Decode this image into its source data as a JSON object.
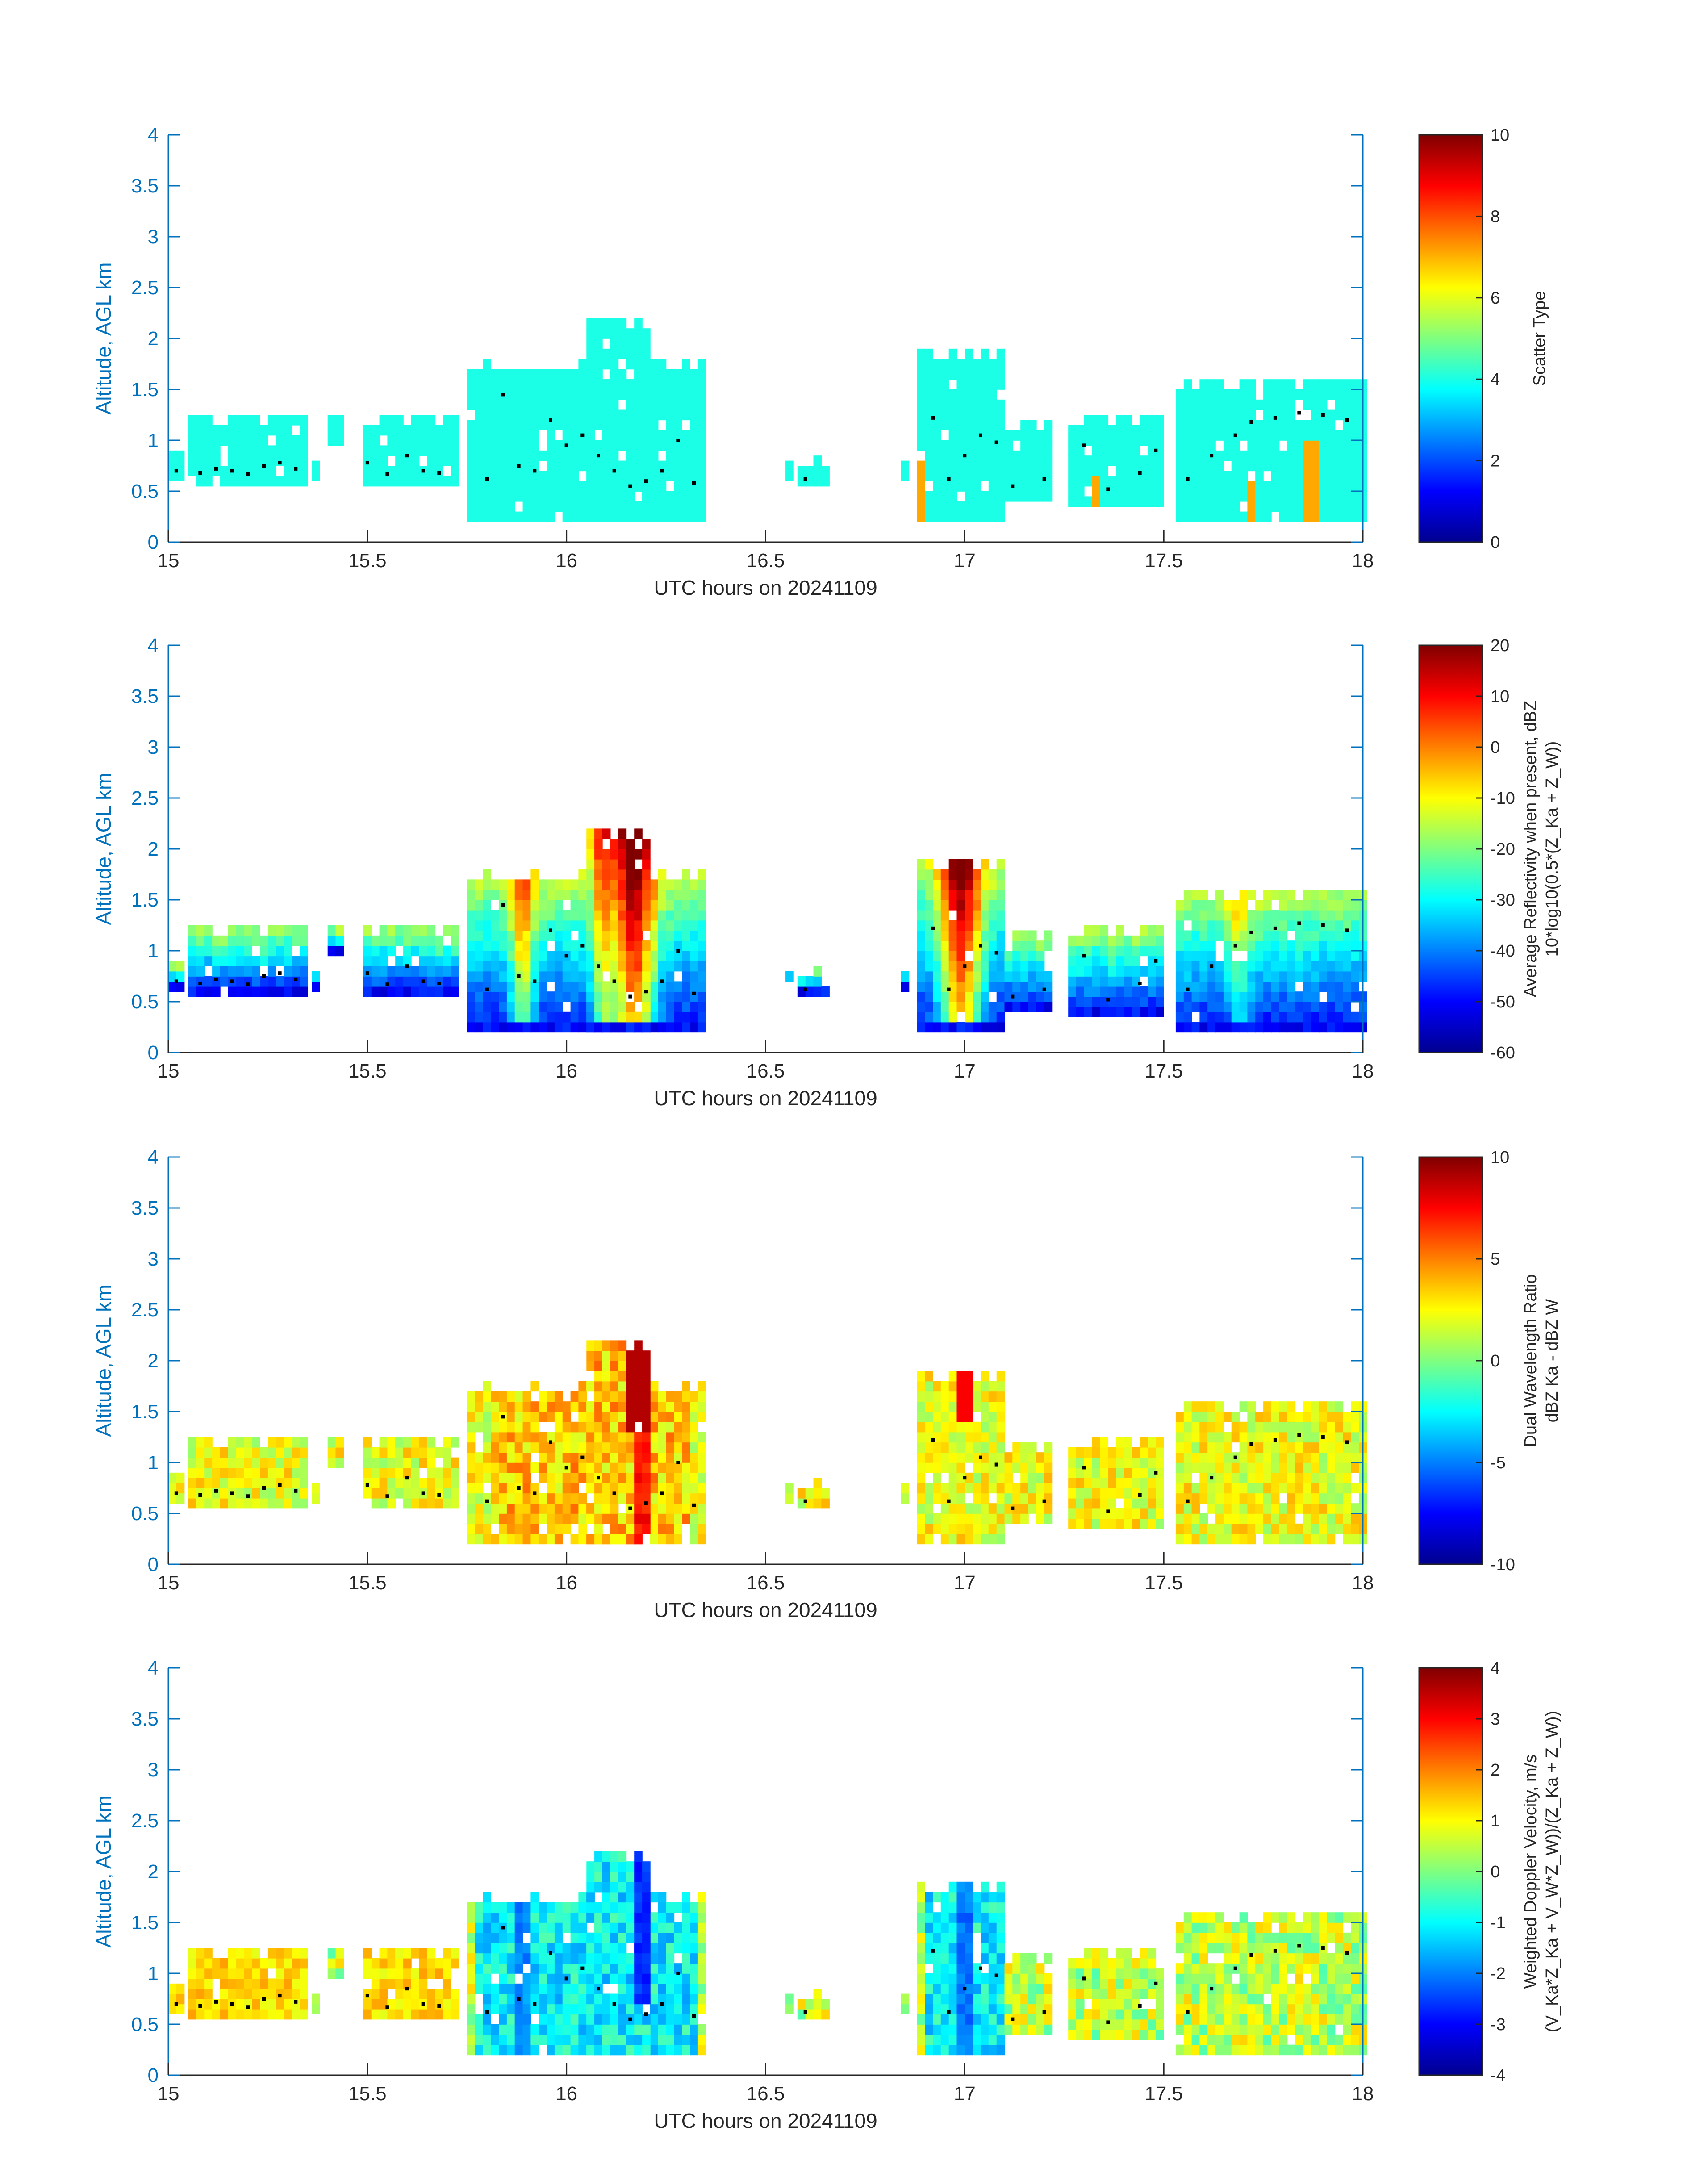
{
  "figure": {
    "xlabel": "UTC hours on 20241109",
    "ylabel": "Altitude, AGL km",
    "axis_color": "#0072BD",
    "colormap": "jet"
  },
  "chart_data": [
    {
      "type": "heatmap",
      "xlim": [
        15,
        18
      ],
      "ylim": [
        0,
        4
      ],
      "xticks": [
        "15",
        "15.5",
        "16",
        "16.5",
        "17",
        "17.5",
        "18"
      ],
      "yticks": [
        "0",
        "0.5",
        "1",
        "1.5",
        "2",
        "2.5",
        "3",
        "3.5",
        "4"
      ],
      "colorbar": {
        "label_lines": [
          "Scatter Type"
        ],
        "clim": [
          0,
          10
        ],
        "ticks": [
          "0",
          "2",
          "4",
          "6",
          "8",
          "10"
        ]
      },
      "field": "scatter"
    },
    {
      "type": "heatmap",
      "xlim": [
        15,
        18
      ],
      "ylim": [
        0,
        4
      ],
      "xticks": [
        "15",
        "15.5",
        "16",
        "16.5",
        "17",
        "17.5",
        "18"
      ],
      "yticks": [
        "0",
        "0.5",
        "1",
        "1.5",
        "2",
        "2.5",
        "3",
        "3.5",
        "4"
      ],
      "colorbar": {
        "label_lines": [
          "Average Reflectivity when present, dBZ",
          "10*log10(0.5*(Z_Ka + Z_W))"
        ],
        "clim": [
          -60,
          20
        ],
        "ticks": [
          "-60",
          "-50",
          "-40",
          "-30",
          "-20",
          "-10",
          "0",
          "10",
          "20"
        ]
      },
      "field": "reflectivity"
    },
    {
      "type": "heatmap",
      "xlim": [
        15,
        18
      ],
      "ylim": [
        0,
        4
      ],
      "xticks": [
        "15",
        "15.5",
        "16",
        "16.5",
        "17",
        "17.5",
        "18"
      ],
      "yticks": [
        "0",
        "0.5",
        "1",
        "1.5",
        "2",
        "2.5",
        "3",
        "3.5",
        "4"
      ],
      "colorbar": {
        "label_lines": [
          "Dual Wavelength Ratio",
          "dBZ Ka - dBZ W"
        ],
        "clim": [
          -10,
          10
        ],
        "ticks": [
          "-10",
          "-5",
          "0",
          "5",
          "10"
        ]
      },
      "field": "dwr"
    },
    {
      "type": "heatmap",
      "xlim": [
        15,
        18
      ],
      "ylim": [
        0,
        4
      ],
      "xticks": [
        "15",
        "15.5",
        "16",
        "16.5",
        "17",
        "17.5",
        "18"
      ],
      "yticks": [
        "0",
        "0.5",
        "1",
        "1.5",
        "2",
        "2.5",
        "3",
        "3.5",
        "4"
      ],
      "colorbar": {
        "label_lines": [
          "Weighted Doppler Velocity, m/s",
          "(V_Ka*Z_Ka + V_W*Z_W))/(Z_Ka + Z_W))"
        ],
        "clim": [
          -4,
          4
        ],
        "ticks": [
          "-4",
          "-3",
          "-2",
          "-1",
          "0",
          "1",
          "2",
          "3",
          "4"
        ]
      },
      "field": "velocity"
    }
  ],
  "cloud_columns": [
    {
      "x0": 15.0,
      "x1": 15.03,
      "bot": 0.6,
      "top": 0.9
    },
    {
      "x0": 15.05,
      "x1": 15.34,
      "bot": 0.55,
      "top": 1.25
    },
    {
      "x0": 15.36,
      "x1": 15.37,
      "bot": 0.6,
      "top": 0.7
    },
    {
      "x0": 15.4,
      "x1": 15.44,
      "bot": 0.95,
      "top": 1.25
    },
    {
      "x0": 15.49,
      "x1": 15.72,
      "bot": 0.55,
      "top": 1.25
    },
    {
      "x0": 15.75,
      "x1": 16.34,
      "bot": 0.2,
      "top": 1.75
    },
    {
      "x0": 16.05,
      "x1": 16.2,
      "bot": 0.2,
      "top": 2.2
    },
    {
      "x0": 16.55,
      "x1": 16.56,
      "bot": 0.6,
      "top": 0.7
    },
    {
      "x0": 16.58,
      "x1": 16.66,
      "bot": 0.55,
      "top": 0.8
    },
    {
      "x0": 16.84,
      "x1": 16.85,
      "bot": 0.6,
      "top": 0.8
    },
    {
      "x0": 16.88,
      "x1": 17.1,
      "bot": 0.2,
      "top": 1.9
    },
    {
      "x0": 17.1,
      "x1": 17.22,
      "bot": 0.4,
      "top": 1.2
    },
    {
      "x0": 17.26,
      "x1": 17.5,
      "bot": 0.35,
      "top": 1.25
    },
    {
      "x0": 17.53,
      "x1": 18.0,
      "bot": 0.2,
      "top": 1.6
    }
  ],
  "melting_layer_points": [
    [
      15.02,
      0.7
    ],
    [
      15.08,
      0.68
    ],
    [
      15.12,
      0.72
    ],
    [
      15.16,
      0.7
    ],
    [
      15.2,
      0.67
    ],
    [
      15.24,
      0.75
    ],
    [
      15.28,
      0.78
    ],
    [
      15.32,
      0.72
    ],
    [
      15.5,
      0.78
    ],
    [
      15.55,
      0.67
    ],
    [
      15.6,
      0.85
    ],
    [
      15.64,
      0.7
    ],
    [
      15.68,
      0.68
    ],
    [
      15.8,
      0.62
    ],
    [
      15.84,
      1.45
    ],
    [
      15.88,
      0.75
    ],
    [
      15.92,
      0.7
    ],
    [
      15.96,
      1.2
    ],
    [
      16.0,
      0.95
    ],
    [
      16.04,
      1.05
    ],
    [
      16.08,
      0.85
    ],
    [
      16.12,
      0.7
    ],
    [
      16.16,
      0.55
    ],
    [
      16.2,
      0.6
    ],
    [
      16.24,
      0.7
    ],
    [
      16.28,
      1.0
    ],
    [
      16.32,
      0.58
    ],
    [
      16.6,
      0.62
    ],
    [
      16.92,
      1.22
    ],
    [
      16.96,
      0.62
    ],
    [
      17.0,
      0.85
    ],
    [
      17.04,
      1.05
    ],
    [
      17.08,
      0.98
    ],
    [
      17.12,
      0.55
    ],
    [
      17.2,
      0.62
    ],
    [
      17.3,
      0.95
    ],
    [
      17.36,
      0.52
    ],
    [
      17.44,
      0.68
    ],
    [
      17.48,
      0.9
    ],
    [
      17.56,
      0.62
    ],
    [
      17.62,
      0.85
    ],
    [
      17.68,
      1.05
    ],
    [
      17.72,
      1.18
    ],
    [
      17.78,
      1.22
    ],
    [
      17.84,
      1.27
    ],
    [
      17.9,
      1.25
    ],
    [
      17.96,
      1.2
    ]
  ]
}
